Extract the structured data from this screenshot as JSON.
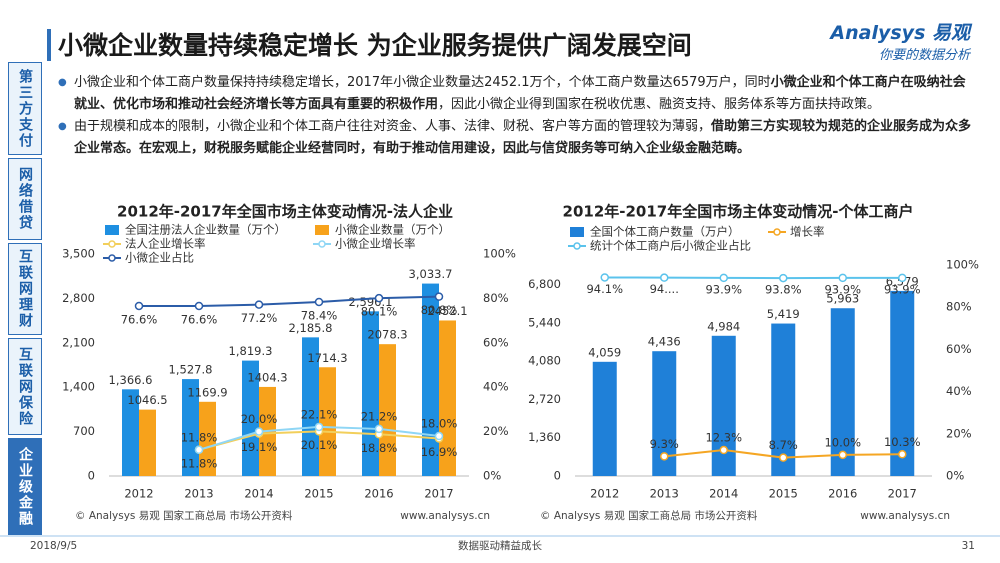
{
  "header": {
    "title": "小微企业数量持续稳定增长 为企业服务提供广阔发展空间",
    "logo": "Analysys 易观",
    "slogan": "你要的数据分析"
  },
  "sidebar": {
    "tabs": [
      "第三方支付",
      "网络借贷",
      "互联网理财",
      "互联网保险",
      "企业级金融"
    ],
    "active": 4
  },
  "bullets": [
    [
      {
        "text": "小微企业和个体工商户数量保持持续稳定增长，2017年小微企业数量达2452.1万个，个体工商户数量达6579万户，同时",
        "bold": false
      },
      {
        "text": "小微企业和个体工商户在吸纳社会就业、优化市场和推动社会经济增长等方面具有重要的积极作用",
        "bold": true
      },
      {
        "text": "，因此小微企业得到国家在税收优惠、融资支持、服务体系等方面扶持政策。",
        "bold": false
      }
    ],
    [
      {
        "text": "由于规模和成本的限制，小微企业和个体工商户往往对资金、人事、法律、财税、客户等方面的管理较为薄弱，",
        "bold": false
      },
      {
        "text": "借助第三方实现较为规范的企业服务成为众多企业常态。在宏观上，财税服务赋能企业经营同时，有助于推动信用建设，因此与信贷服务等可纳入企业级金融范畴。",
        "bold": true
      }
    ]
  ],
  "chart_data": [
    {
      "type": "bar",
      "title": "2012年-2017年全国市场主体变动情况-法人企业",
      "categories": [
        "2012",
        "2013",
        "2014",
        "2015",
        "2016",
        "2017"
      ],
      "ylim": [
        0,
        3500
      ],
      "yticks": [
        0,
        700,
        {
          "value": 1400,
          "label": "1,400"
        },
        {
          "value": 2100,
          "label": "2,100"
        },
        {
          "value": 2800,
          "label": "2,800"
        },
        {
          "value": 3500,
          "label": "3,500"
        }
      ],
      "y2lim": [
        0,
        100
      ],
      "y2ticks": [
        {
          "value": 0,
          "label": "0%"
        },
        {
          "value": 20,
          "label": "20%"
        },
        {
          "value": 40,
          "label": "40%"
        },
        {
          "value": 60,
          "label": "60%"
        },
        {
          "value": 80,
          "label": "80%"
        },
        {
          "value": 100,
          "label": "100%"
        }
      ],
      "series": [
        {
          "name": "全国注册法人企业数量（万个）",
          "type": "bar",
          "color": "#1e8fe1",
          "values": [
            1366.6,
            1527.8,
            1819.3,
            2185.8,
            2596.1,
            3033.7
          ],
          "value_labels": [
            "1,366.6",
            "1,527.8",
            "1,819.3",
            "2,185.8",
            "2,596.1",
            "3,033.7"
          ]
        },
        {
          "name": "小微企业数量（万个）",
          "type": "bar",
          "color": "#f7a21b",
          "values": [
            1046.5,
            1169.9,
            1404.3,
            1714.3,
            2078.3,
            2452.1
          ]
        },
        {
          "name": "法人企业增长率",
          "type": "line",
          "axis": "y2",
          "color": "#f2cf5b",
          "values": [
            null,
            11.8,
            19.1,
            20.1,
            18.8,
            16.9
          ],
          "value_labels": [
            null,
            "11.8%",
            "19.1%",
            "20.1%",
            "18.8%",
            "16.9%"
          ]
        },
        {
          "name": "小微企业增长率",
          "type": "line",
          "axis": "y2",
          "color": "#8fd6f5",
          "values": [
            null,
            11.8,
            20.0,
            22.1,
            21.2,
            18.0
          ],
          "value_labels": [
            null,
            "11.8%",
            "20.0%",
            "22.1%",
            "21.2%",
            "18.0%"
          ]
        },
        {
          "name": "小微企业占比",
          "type": "line",
          "axis": "y2",
          "color": "#2b5ca8",
          "values": [
            76.6,
            76.6,
            77.2,
            78.4,
            80.1,
            80.8
          ],
          "value_labels": [
            "76.6%",
            "76.6%",
            "77.2%",
            "78.4%",
            "80.1%",
            "80.8%"
          ]
        }
      ],
      "source": "© Analysys 易观 国家工商总局 市场公开资料",
      "url": "www.analysys.cn"
    },
    {
      "type": "bar",
      "title": "2012年-2017年全国市场主体变动情况-个体工商户",
      "categories": [
        "2012",
        "2013",
        "2014",
        "2015",
        "2016",
        "2017"
      ],
      "ylim": [
        0,
        7500
      ],
      "yticks": [
        0,
        {
          "value": 1360,
          "label": "1,360"
        },
        {
          "value": 2720,
          "label": "2,720"
        },
        {
          "value": 4080,
          "label": "4,080"
        },
        {
          "value": 5440,
          "label": "5,440"
        },
        {
          "value": 6800,
          "label": "6,800"
        }
      ],
      "y2lim": [
        0,
        100
      ],
      "y2ticks": [
        {
          "value": 0,
          "label": "0%"
        },
        {
          "value": 20,
          "label": "20%"
        },
        {
          "value": 40,
          "label": "40%"
        },
        {
          "value": 60,
          "label": "60%"
        },
        {
          "value": 80,
          "label": "80%"
        },
        {
          "value": 100,
          "label": "100%"
        }
      ],
      "series": [
        {
          "name": "全国个体工商户数量（万户）",
          "type": "bar",
          "color": "#1f80d8",
          "values": [
            4059,
            4436,
            4984,
            5419,
            5963,
            6579
          ],
          "value_labels": [
            "4,059",
            "4,436",
            "4,984",
            "5,419",
            "5,963",
            "6,579"
          ]
        },
        {
          "name": "增长率",
          "type": "line",
          "axis": "y2",
          "color": "#f5a623",
          "values": [
            null,
            9.3,
            12.3,
            8.7,
            10.0,
            10.3
          ],
          "value_labels": [
            null,
            "9.3%",
            "12.3%",
            "8.7%",
            "10.0%",
            "10.3%"
          ]
        },
        {
          "name": "统计个体工商户后小微企业占比",
          "type": "line",
          "axis": "y2",
          "color": "#5bc3ec",
          "values": [
            94.1,
            94,
            93.9,
            93.8,
            93.9,
            93.9
          ],
          "value_labels": [
            "94.1%",
            "94....",
            "93.9%",
            "93.8%",
            "93.9%",
            "93.9%"
          ]
        }
      ],
      "source": "© Analysys 易观 国家工商总局 市场公开资料",
      "url": "www.analysys.cn"
    }
  ],
  "footer": {
    "date": "2018/9/5",
    "motto": "数据驱动精益成长",
    "page": "31"
  }
}
